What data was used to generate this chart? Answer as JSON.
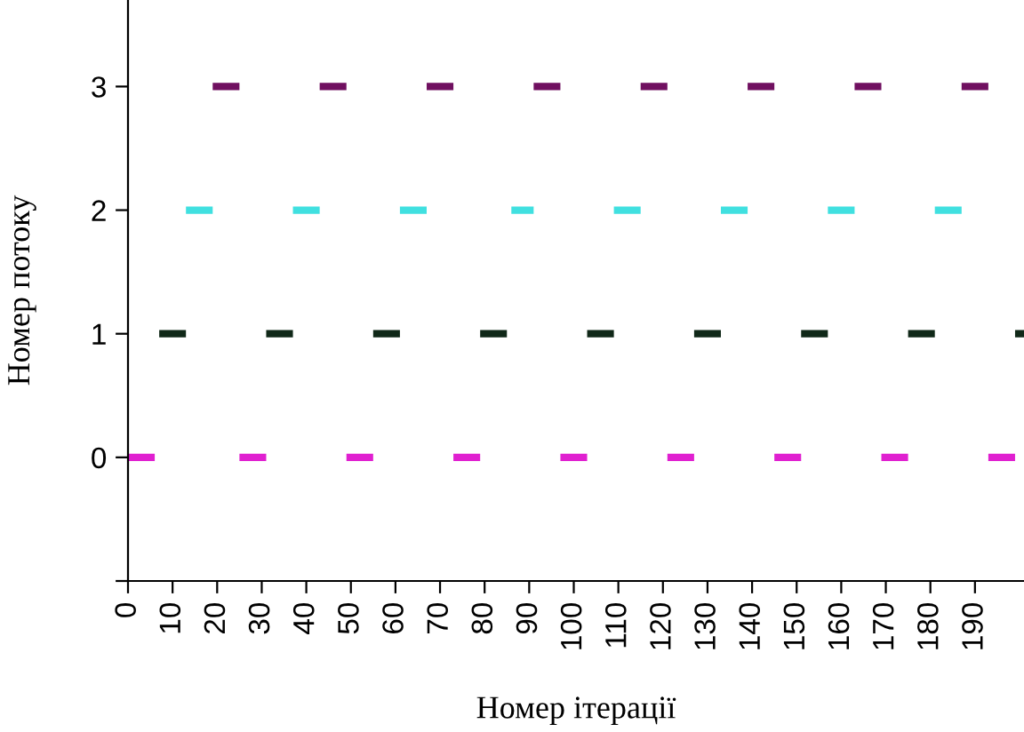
{
  "chart_data": {
    "type": "line",
    "xlabel": "Номер ітерації",
    "ylabel": "Номер потоку",
    "xlim": [
      0,
      201
    ],
    "ylim": [
      -1,
      3.7
    ],
    "xticks": [
      0,
      10,
      20,
      30,
      40,
      50,
      60,
      70,
      80,
      90,
      100,
      110,
      120,
      130,
      140,
      150,
      160,
      170,
      180,
      190
    ],
    "yticks": [
      {
        "value": -1,
        "label": null
      },
      0,
      1,
      2,
      3
    ],
    "grid": false,
    "marker": "none",
    "series": [
      {
        "color": "#e020d0",
        "x": [
          0,
          6,
          null,
          25,
          31,
          null,
          49,
          55,
          null,
          73,
          79,
          null,
          97,
          103,
          null,
          121,
          127,
          null,
          145,
          151,
          null,
          169,
          175,
          null,
          193,
          199
        ],
        "values": [
          0,
          0,
          null,
          0,
          0,
          null,
          0,
          0,
          null,
          0,
          0,
          null,
          0,
          0,
          null,
          0,
          0,
          null,
          0,
          0,
          null,
          0,
          0,
          null,
          0,
          0
        ]
      },
      {
        "color": "#102818",
        "x": [
          7,
          13,
          null,
          31,
          37,
          null,
          55,
          61,
          null,
          79,
          85,
          null,
          103,
          109,
          null,
          127,
          133,
          null,
          151,
          157,
          null,
          175,
          181,
          null,
          199,
          201
        ],
        "values": [
          1,
          1,
          null,
          1,
          1,
          null,
          1,
          1,
          null,
          1,
          1,
          null,
          1,
          1,
          null,
          1,
          1,
          null,
          1,
          1,
          null,
          1,
          1,
          null,
          1,
          1
        ]
      },
      {
        "color": "#40e0e0",
        "x": [
          13,
          19,
          null,
          37,
          43,
          null,
          61,
          67,
          null,
          86,
          91,
          null,
          109,
          115,
          null,
          133,
          139,
          null,
          157,
          163,
          null,
          181,
          187
        ],
        "values": [
          2,
          2,
          null,
          2,
          2,
          null,
          2,
          2,
          null,
          2,
          2,
          null,
          2,
          2,
          null,
          2,
          2,
          null,
          2,
          2,
          null,
          2,
          2
        ]
      },
      {
        "color": "#701060",
        "x": [
          19,
          25,
          null,
          43,
          49,
          null,
          67,
          73,
          null,
          91,
          97,
          null,
          115,
          121,
          null,
          139,
          145,
          null,
          163,
          169,
          null,
          187,
          193
        ],
        "values": [
          3,
          3,
          null,
          3,
          3,
          null,
          3,
          3,
          null,
          3,
          3,
          null,
          3,
          3,
          null,
          3,
          3,
          null,
          3,
          3,
          null,
          3,
          3
        ]
      }
    ]
  }
}
